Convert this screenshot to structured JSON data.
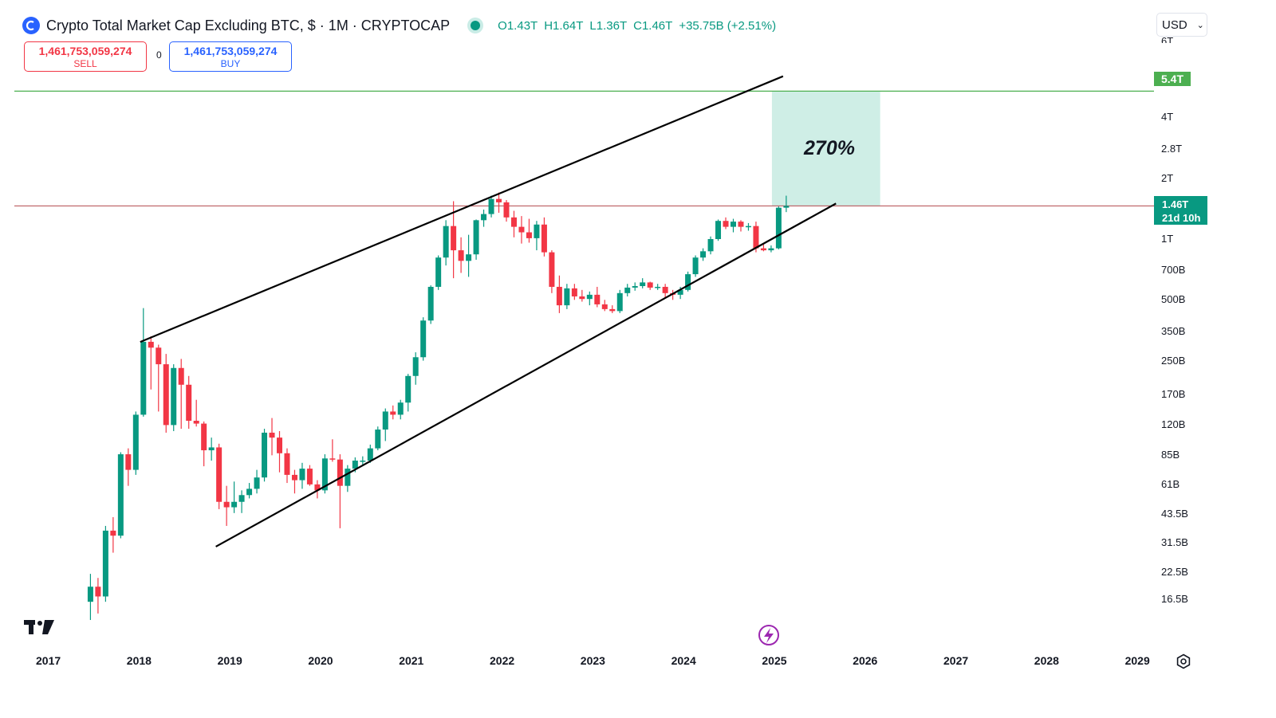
{
  "header": {
    "symbol_title": "Crypto Total Market Cap Excluding BTC, $ · 1M · CRYPTOCAP",
    "ohlc": {
      "open": "O1.43T",
      "high": "H1.64T",
      "low": "L1.36T",
      "close": "C1.46T",
      "change": "+35.75B (+2.51%)"
    }
  },
  "trade": {
    "sell_price": "1,461,753,059,274",
    "sell_label": "SELL",
    "spread": "0",
    "buy_price": "1,461,753,059,274",
    "buy_label": "BUY"
  },
  "currency": {
    "selected": "USD"
  },
  "price_axis": {
    "top_cut_label": "6T",
    "labels": [
      "4T",
      "2.8T",
      "2T",
      "1T",
      "700B",
      "500B",
      "350B",
      "250B",
      "170B",
      "120B",
      "85B",
      "61B",
      "43.5B",
      "31.5B",
      "22.5B",
      "16.5B"
    ]
  },
  "time_axis": {
    "labels": [
      "2017",
      "2018",
      "2019",
      "2020",
      "2021",
      "2022",
      "2023",
      "2024",
      "2025",
      "2026",
      "2027",
      "2028",
      "2029"
    ]
  },
  "tags": {
    "target": "5.4T",
    "last_price": "1.46T",
    "countdown": "21d 10h"
  },
  "annotation": {
    "percent": "270%"
  },
  "colors": {
    "up": "#089981",
    "down": "#f23645",
    "target_line": "#4caf50",
    "price_line": "#b2484d",
    "target_zone": "#cfeee6",
    "trendline": "#000000",
    "accent": "#2962ff"
  },
  "chart_data": {
    "type": "candlestick",
    "scale": "log",
    "interval": "1M",
    "ylim": [
      14000000000,
      6000000000000
    ],
    "series": [
      {
        "date": "2017-06",
        "open": 16,
        "high": 22,
        "low": 13,
        "close": 19
      },
      {
        "date": "2017-07",
        "open": 19,
        "high": 21,
        "low": 14,
        "close": 17
      },
      {
        "date": "2017-08",
        "open": 17,
        "high": 38,
        "low": 16,
        "close": 36
      },
      {
        "date": "2017-09",
        "open": 36,
        "high": 42,
        "low": 28,
        "close": 34
      },
      {
        "date": "2017-10",
        "open": 34,
        "high": 88,
        "low": 33,
        "close": 86
      },
      {
        "date": "2017-11",
        "open": 86,
        "high": 92,
        "low": 60,
        "close": 72
      },
      {
        "date": "2017-12",
        "open": 72,
        "high": 140,
        "low": 68,
        "close": 135
      },
      {
        "date": "2018-01",
        "open": 135,
        "high": 455,
        "low": 132,
        "close": 310
      },
      {
        "date": "2018-02",
        "open": 310,
        "high": 330,
        "low": 180,
        "close": 290
      },
      {
        "date": "2018-03",
        "open": 290,
        "high": 300,
        "low": 140,
        "close": 240
      },
      {
        "date": "2018-04",
        "open": 240,
        "high": 270,
        "low": 110,
        "close": 120
      },
      {
        "date": "2018-05",
        "open": 120,
        "high": 240,
        "low": 112,
        "close": 230
      },
      {
        "date": "2018-06",
        "open": 230,
        "high": 255,
        "low": 115,
        "close": 190
      },
      {
        "date": "2018-07",
        "open": 190,
        "high": 210,
        "low": 115,
        "close": 126
      },
      {
        "date": "2018-08",
        "open": 126,
        "high": 160,
        "low": 118,
        "close": 122
      },
      {
        "date": "2018-09",
        "open": 122,
        "high": 125,
        "low": 75,
        "close": 90
      },
      {
        "date": "2018-10",
        "open": 90,
        "high": 104,
        "low": 80,
        "close": 93
      },
      {
        "date": "2018-11",
        "open": 93,
        "high": 97,
        "low": 46,
        "close": 50
      },
      {
        "date": "2018-12",
        "open": 50,
        "high": 60,
        "low": 38,
        "close": 47
      },
      {
        "date": "2019-01",
        "open": 47,
        "high": 63,
        "low": 44,
        "close": 50
      },
      {
        "date": "2019-02",
        "open": 50,
        "high": 57,
        "low": 44,
        "close": 54
      },
      {
        "date": "2019-03",
        "open": 54,
        "high": 62,
        "low": 52,
        "close": 58
      },
      {
        "date": "2019-04",
        "open": 58,
        "high": 72,
        "low": 55,
        "close": 66
      },
      {
        "date": "2019-05",
        "open": 66,
        "high": 115,
        "low": 63,
        "close": 110
      },
      {
        "date": "2019-06",
        "open": 110,
        "high": 130,
        "low": 85,
        "close": 104
      },
      {
        "date": "2019-07",
        "open": 104,
        "high": 112,
        "low": 70,
        "close": 87
      },
      {
        "date": "2019-08",
        "open": 87,
        "high": 92,
        "low": 62,
        "close": 68
      },
      {
        "date": "2019-09",
        "open": 68,
        "high": 72,
        "low": 55,
        "close": 64
      },
      {
        "date": "2019-10",
        "open": 64,
        "high": 78,
        "low": 58,
        "close": 73
      },
      {
        "date": "2019-11",
        "open": 73,
        "high": 76,
        "low": 60,
        "close": 61
      },
      {
        "date": "2019-12",
        "open": 61,
        "high": 64,
        "low": 52,
        "close": 57
      },
      {
        "date": "2020-01",
        "open": 57,
        "high": 86,
        "low": 55,
        "close": 82
      },
      {
        "date": "2020-02",
        "open": 82,
        "high": 102,
        "low": 79,
        "close": 81
      },
      {
        "date": "2020-03",
        "open": 81,
        "high": 86,
        "low": 37,
        "close": 60
      },
      {
        "date": "2020-04",
        "open": 60,
        "high": 76,
        "low": 56,
        "close": 73
      },
      {
        "date": "2020-05",
        "open": 73,
        "high": 83,
        "low": 70,
        "close": 80
      },
      {
        "date": "2020-06",
        "open": 80,
        "high": 84,
        "low": 76,
        "close": 80
      },
      {
        "date": "2020-07",
        "open": 80,
        "high": 96,
        "low": 78,
        "close": 92
      },
      {
        "date": "2020-08",
        "open": 92,
        "high": 118,
        "low": 90,
        "close": 114
      },
      {
        "date": "2020-09",
        "open": 114,
        "high": 145,
        "low": 100,
        "close": 140
      },
      {
        "date": "2020-10",
        "open": 140,
        "high": 150,
        "low": 128,
        "close": 135
      },
      {
        "date": "2020-11",
        "open": 135,
        "high": 160,
        "low": 128,
        "close": 155
      },
      {
        "date": "2020-12",
        "open": 155,
        "high": 215,
        "low": 140,
        "close": 210
      },
      {
        "date": "2021-01",
        "open": 210,
        "high": 275,
        "low": 190,
        "close": 260
      },
      {
        "date": "2021-02",
        "open": 260,
        "high": 410,
        "low": 250,
        "close": 395
      },
      {
        "date": "2021-03",
        "open": 395,
        "high": 590,
        "low": 380,
        "close": 580
      },
      {
        "date": "2021-04",
        "open": 580,
        "high": 830,
        "low": 560,
        "close": 810
      },
      {
        "date": "2021-05",
        "open": 810,
        "high": 1240,
        "low": 740,
        "close": 1160
      },
      {
        "date": "2021-06",
        "open": 1160,
        "high": 1540,
        "low": 640,
        "close": 880
      },
      {
        "date": "2021-07",
        "open": 880,
        "high": 1020,
        "low": 680,
        "close": 780
      },
      {
        "date": "2021-08",
        "open": 780,
        "high": 1050,
        "low": 650,
        "close": 840
      },
      {
        "date": "2021-09",
        "open": 840,
        "high": 1250,
        "low": 790,
        "close": 1240
      },
      {
        "date": "2021-10",
        "open": 1240,
        "high": 1400,
        "low": 1150,
        "close": 1330
      },
      {
        "date": "2021-11",
        "open": 1330,
        "high": 1640,
        "low": 1280,
        "close": 1580
      },
      {
        "date": "2021-12",
        "open": 1580,
        "high": 1700,
        "low": 1350,
        "close": 1520
      },
      {
        "date": "2022-01",
        "open": 1520,
        "high": 1560,
        "low": 1220,
        "close": 1280
      },
      {
        "date": "2022-02",
        "open": 1280,
        "high": 1380,
        "low": 1020,
        "close": 1150
      },
      {
        "date": "2022-03",
        "open": 1150,
        "high": 1300,
        "low": 950,
        "close": 1080
      },
      {
        "date": "2022-04",
        "open": 1080,
        "high": 1260,
        "low": 960,
        "close": 1010
      },
      {
        "date": "2022-05",
        "open": 1010,
        "high": 1230,
        "low": 880,
        "close": 1180
      },
      {
        "date": "2022-06",
        "open": 1180,
        "high": 1280,
        "low": 820,
        "close": 860
      },
      {
        "date": "2022-07",
        "open": 860,
        "high": 880,
        "low": 540,
        "close": 580
      },
      {
        "date": "2022-08",
        "open": 580,
        "high": 660,
        "low": 430,
        "close": 470
      },
      {
        "date": "2022-09",
        "open": 470,
        "high": 600,
        "low": 450,
        "close": 570
      },
      {
        "date": "2022-10",
        "open": 570,
        "high": 600,
        "low": 500,
        "close": 520
      },
      {
        "date": "2022-11",
        "open": 520,
        "high": 560,
        "low": 490,
        "close": 505
      },
      {
        "date": "2022-12",
        "open": 505,
        "high": 550,
        "low": 470,
        "close": 530
      },
      {
        "date": "2023-01",
        "open": 530,
        "high": 580,
        "low": 460,
        "close": 475
      },
      {
        "date": "2023-02",
        "open": 475,
        "high": 500,
        "low": 440,
        "close": 450
      },
      {
        "date": "2023-03",
        "open": 450,
        "high": 470,
        "low": 430,
        "close": 440
      },
      {
        "date": "2023-04",
        "open": 440,
        "high": 560,
        "low": 430,
        "close": 540
      },
      {
        "date": "2023-05",
        "open": 540,
        "high": 600,
        "low": 520,
        "close": 575
      },
      {
        "date": "2023-06",
        "open": 575,
        "high": 610,
        "low": 555,
        "close": 585
      },
      {
        "date": "2023-07",
        "open": 585,
        "high": 640,
        "low": 570,
        "close": 610
      },
      {
        "date": "2023-08",
        "open": 610,
        "high": 615,
        "low": 560,
        "close": 575
      },
      {
        "date": "2023-09",
        "open": 575,
        "high": 600,
        "low": 560,
        "close": 580
      },
      {
        "date": "2023-10",
        "open": 580,
        "high": 600,
        "low": 510,
        "close": 540
      },
      {
        "date": "2023-11",
        "open": 540,
        "high": 560,
        "low": 500,
        "close": 530
      },
      {
        "date": "2023-12",
        "open": 530,
        "high": 580,
        "low": 505,
        "close": 560
      },
      {
        "date": "2024-01",
        "open": 560,
        "high": 690,
        "low": 550,
        "close": 670
      },
      {
        "date": "2024-02",
        "open": 670,
        "high": 830,
        "low": 650,
        "close": 810
      },
      {
        "date": "2024-03",
        "open": 810,
        "high": 900,
        "low": 780,
        "close": 870
      },
      {
        "date": "2024-04",
        "open": 870,
        "high": 1030,
        "low": 840,
        "close": 1000
      },
      {
        "date": "2024-05",
        "open": 1000,
        "high": 1250,
        "low": 980,
        "close": 1230
      },
      {
        "date": "2024-06",
        "open": 1230,
        "high": 1280,
        "low": 1120,
        "close": 1150
      },
      {
        "date": "2024-07",
        "open": 1150,
        "high": 1260,
        "low": 1080,
        "close": 1220
      },
      {
        "date": "2024-08",
        "open": 1220,
        "high": 1240,
        "low": 1090,
        "close": 1150
      },
      {
        "date": "2024-09",
        "open": 1150,
        "high": 1200,
        "low": 1100,
        "close": 1160
      },
      {
        "date": "2024-10",
        "open": 1160,
        "high": 1220,
        "low": 860,
        "close": 900
      },
      {
        "date": "2024-11",
        "open": 900,
        "high": 940,
        "low": 870,
        "close": 880
      },
      {
        "date": "2024-12",
        "open": 880,
        "high": 930,
        "low": 860,
        "close": 900
      },
      {
        "date": "2025-01",
        "open": 900,
        "high": 1450,
        "low": 890,
        "close": 1430
      },
      {
        "date": "2025-02",
        "open": 1430,
        "high": 1640,
        "low": 1360,
        "close": 1460
      }
    ],
    "lines": {
      "target": 5400000000000,
      "last_price": 1460000000000
    }
  }
}
